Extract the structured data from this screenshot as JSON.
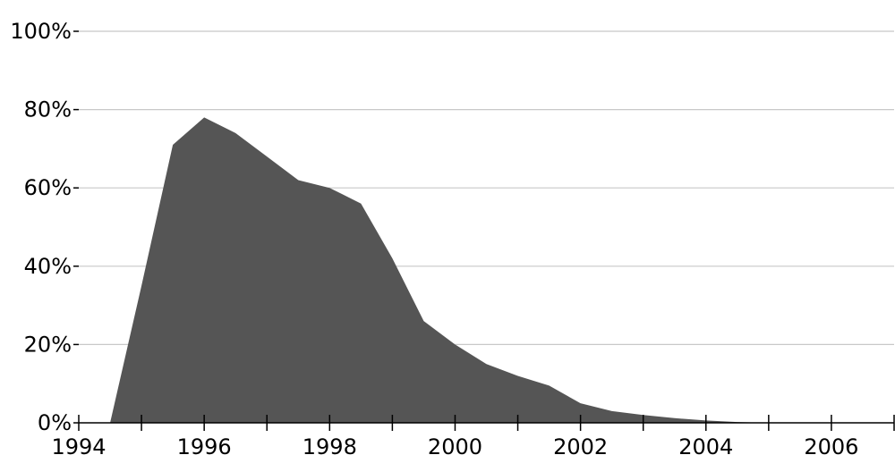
{
  "chart_data": {
    "type": "area",
    "title": "",
    "xlabel": "",
    "ylabel": "",
    "xlim": [
      1994,
      2007
    ],
    "ylim": [
      0,
      100
    ],
    "grid": true,
    "x_ticks": [
      1994,
      1996,
      1998,
      2000,
      2002,
      2004,
      2006
    ],
    "x_tick_labels": [
      "1994",
      "1996",
      "1998",
      "2000",
      "2002",
      "2004",
      "2006"
    ],
    "y_ticks": [
      0,
      20,
      40,
      60,
      80,
      100
    ],
    "y_tick_labels": [
      "0%",
      "20%",
      "40%",
      "60%",
      "80%",
      "100%"
    ],
    "series": [
      {
        "color": "#555555",
        "x": [
          1994.5,
          1995,
          1995.5,
          1996,
          1996.5,
          1997,
          1997.5,
          1998,
          1998.5,
          1999,
          1999.5,
          2000,
          2000.5,
          2001,
          2001.5,
          2002,
          2002.5,
          2003,
          2003.5,
          2004,
          2004.5,
          2005,
          2007
        ],
        "y": [
          0,
          35,
          71,
          78,
          74,
          68,
          62,
          60,
          56,
          42,
          26,
          20,
          15,
          12,
          9.5,
          5,
          3,
          2,
          1.2,
          0.6,
          0.2,
          0,
          0
        ]
      }
    ]
  }
}
